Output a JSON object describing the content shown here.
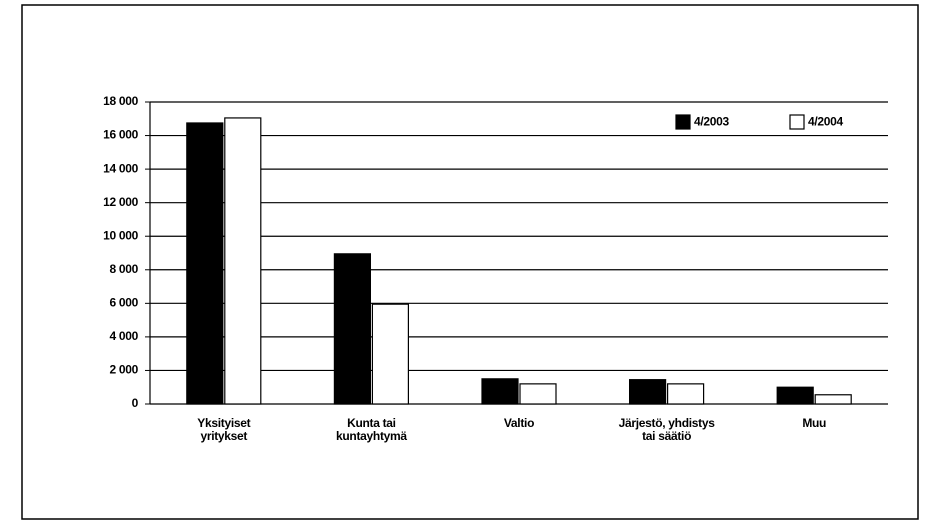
{
  "chart_data": {
    "type": "bar",
    "categories": [
      "Yksityiset\nyritykset",
      "Kunta tai\nkuntayhtymä",
      "Valtio",
      "Järjestö, yhdistys\ntai säätiö",
      "Muu"
    ],
    "series": [
      {
        "name": "4/2003",
        "color": "#000000",
        "values": [
          16750,
          8950,
          1500,
          1450,
          1000
        ]
      },
      {
        "name": "4/2004",
        "color": "#ffffff",
        "values": [
          17050,
          5950,
          1200,
          1200,
          550
        ]
      }
    ],
    "ylim": [
      0,
      18000
    ],
    "yticks": [
      0,
      {
        "value": 2000,
        "label": "2 000"
      },
      {
        "value": 4000,
        "label": "4 000"
      },
      {
        "value": 6000,
        "label": "6 000"
      },
      {
        "value": 8000,
        "label": "8 000"
      },
      {
        "value": 10000,
        "label": "10 000"
      },
      {
        "value": 12000,
        "label": "12 000"
      },
      {
        "value": 14000,
        "label": "14 000"
      },
      {
        "value": 16000,
        "label": "16 000"
      },
      {
        "value": 18000,
        "label": "18 000"
      }
    ],
    "grid": true,
    "legend": "top-right"
  }
}
